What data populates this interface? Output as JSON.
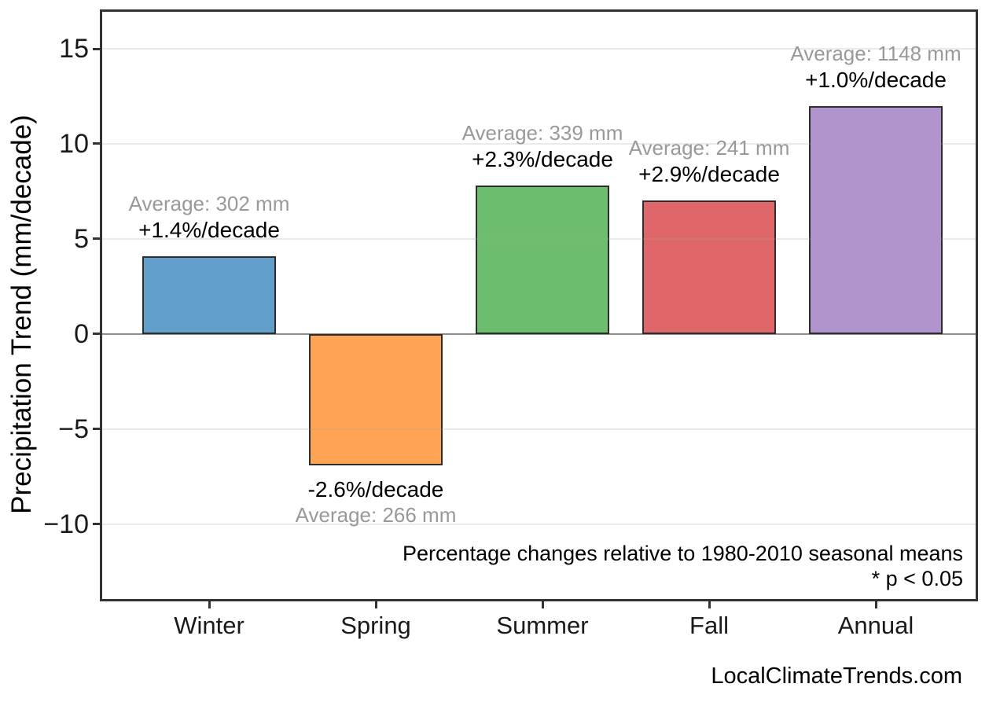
{
  "chart_data": {
    "type": "bar",
    "title": "",
    "ylabel": "Precipitation Trend (mm/decade)",
    "xlabel": "",
    "categories": [
      "Winter",
      "Spring",
      "Summer",
      "Fall",
      "Annual"
    ],
    "values": [
      4.1,
      -6.9,
      7.8,
      7.0,
      12.0
    ],
    "averages_mm": [
      302,
      266,
      339,
      241,
      1148
    ],
    "avg_labels": [
      "Average: 302 mm",
      "Average: 266 mm",
      "Average: 339 mm",
      "Average: 241 mm",
      "Average: 1148 mm"
    ],
    "pct_labels": [
      "+1.4%/decade",
      "-2.6%/decade",
      "+2.3%/decade",
      "+2.9%/decade",
      "+1.0%/decade"
    ],
    "bar_colors": [
      "#619EC9",
      "#FFA355",
      "#6CBE6E",
      "#E06769",
      "#B194CE"
    ],
    "bar_edge_color": "#2d2d2d",
    "ytick_values": [
      15,
      10,
      5,
      0,
      -5,
      -10
    ],
    "ytick_labels": [
      "15",
      "10",
      "5",
      "0",
      "−5",
      "−10"
    ],
    "ylim": [
      -14.1,
      16.9
    ],
    "grid": true,
    "legend": false,
    "footnotes": [
      "Percentage changes relative to 1980-2010 seasonal means",
      "* p < 0.05"
    ]
  },
  "watermark": "LocalClimateTrends.com",
  "colors": {
    "avg_label": "#999999",
    "pct_label": "#000000",
    "zero_line": "#8c8c8c",
    "gridline": "rgba(160,160,160,0.22)",
    "spine": "#333333",
    "background": "#ffffff"
  }
}
